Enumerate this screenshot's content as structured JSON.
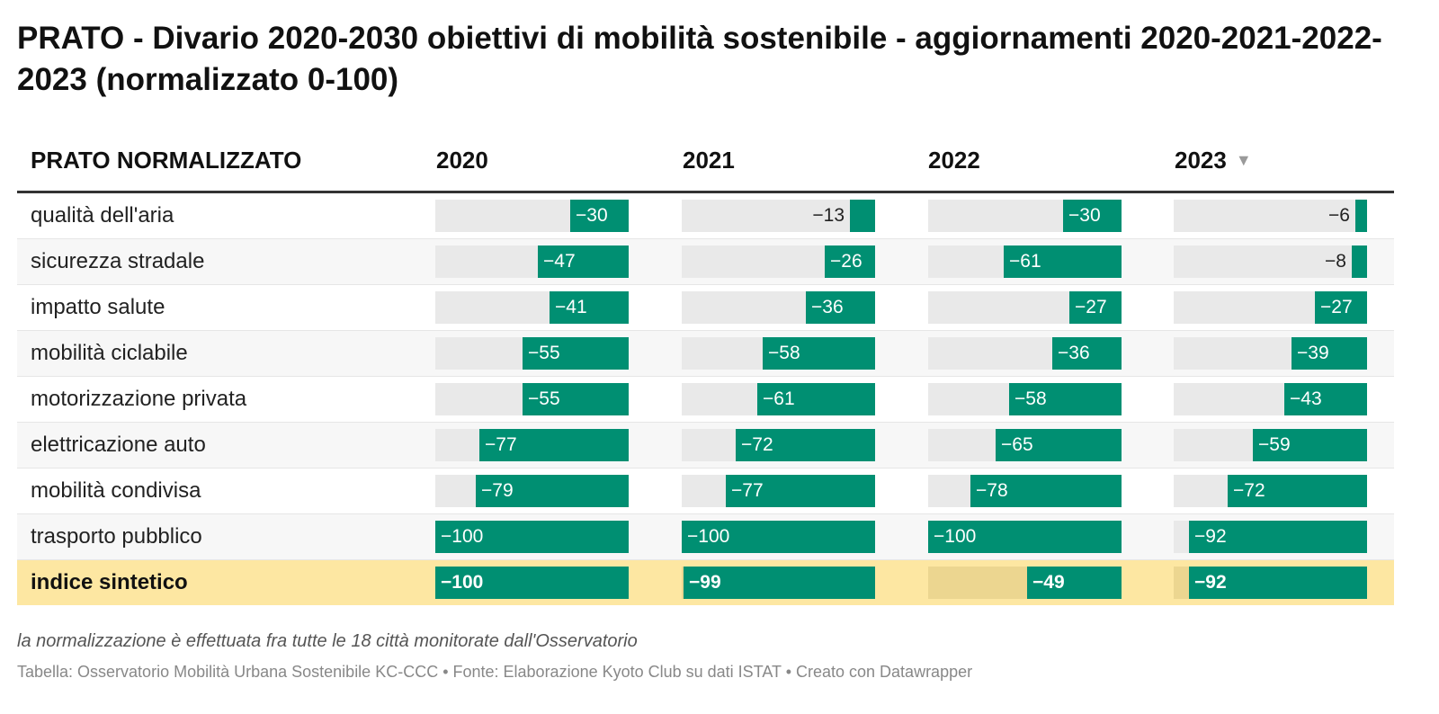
{
  "title": "PRATO - Divario 2020-2030 obiettivi di mobilità sostenibile - aggiornamenti 2020-2021-2022-2023 (normalizzato 0-100)",
  "columns": [
    "PRATO NORMALIZZATO",
    "2020",
    "2021",
    "2022",
    "2023"
  ],
  "sorted_column": "2023",
  "colors": {
    "bar": "#008f72",
    "bar_track": "#e9e9e9",
    "highlight_row": "#fde7a2"
  },
  "chart_data": {
    "type": "table",
    "title": "PRATO - Divario 2020-2030 obiettivi di mobilità sostenibile - aggiornamenti 2020-2021-2022-2023 (normalizzato 0-100)",
    "categories": [
      "qualità dell'aria",
      "sicurezza stradale",
      "impatto salute",
      "mobilità ciclabile",
      "motorizzazione privata",
      "elettricazione auto",
      "mobilità condivisa",
      "trasporto pubblico",
      "indice sintetico"
    ],
    "series": [
      {
        "name": "2020",
        "values": [
          -30,
          -47,
          -41,
          -55,
          -55,
          -77,
          -79,
          -100,
          -100
        ]
      },
      {
        "name": "2021",
        "values": [
          -13,
          -26,
          -36,
          -58,
          -61,
          -72,
          -77,
          -100,
          -99
        ]
      },
      {
        "name": "2022",
        "values": [
          -30,
          -61,
          -27,
          -36,
          -58,
          -65,
          -78,
          -100,
          -49
        ]
      },
      {
        "name": "2023",
        "values": [
          -6,
          -8,
          -27,
          -39,
          -43,
          -59,
          -72,
          -92,
          -92
        ]
      }
    ],
    "value_range": [
      -100,
      0
    ],
    "highlighted_category": "indice sintetico"
  },
  "note": "la normalizzazione è effettuata fra tutte le 18 città monitorate dall'Osservatorio",
  "source": "Tabella: Osservatorio Mobilità Urbana Sostenibile KC-CCC • Fonte: Elaborazione Kyoto Club su dati ISTAT • Creato con Datawrapper"
}
